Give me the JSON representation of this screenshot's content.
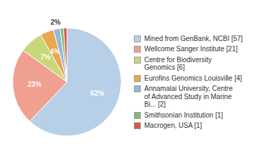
{
  "chart_data": {
    "type": "pie",
    "categories": [
      "Mined from GenBank, NCBI [57]",
      "Wellcome Sanger Institute [21]",
      "Centre for Biodiversity\nGenomics [6]",
      "Eurofins Genomics Louisville [4]",
      "Annamalai University, Centre\nof Advanced Study in Marine\nBi... [2]",
      "Smithsonian Institution [1]",
      "Macrogen, USA [1]"
    ],
    "values": [
      62,
      23,
      7,
      4,
      2,
      1,
      1
    ],
    "value_labels": [
      "62%",
      "23%",
      "7%",
      "4%",
      "2%",
      null,
      null
    ],
    "colors": [
      "#b8cfe8",
      "#f0a090",
      "#c8d878",
      "#e8a850",
      "#94b8d8",
      "#88b878",
      "#d85840"
    ],
    "legend": "right",
    "data_labels": true
  }
}
